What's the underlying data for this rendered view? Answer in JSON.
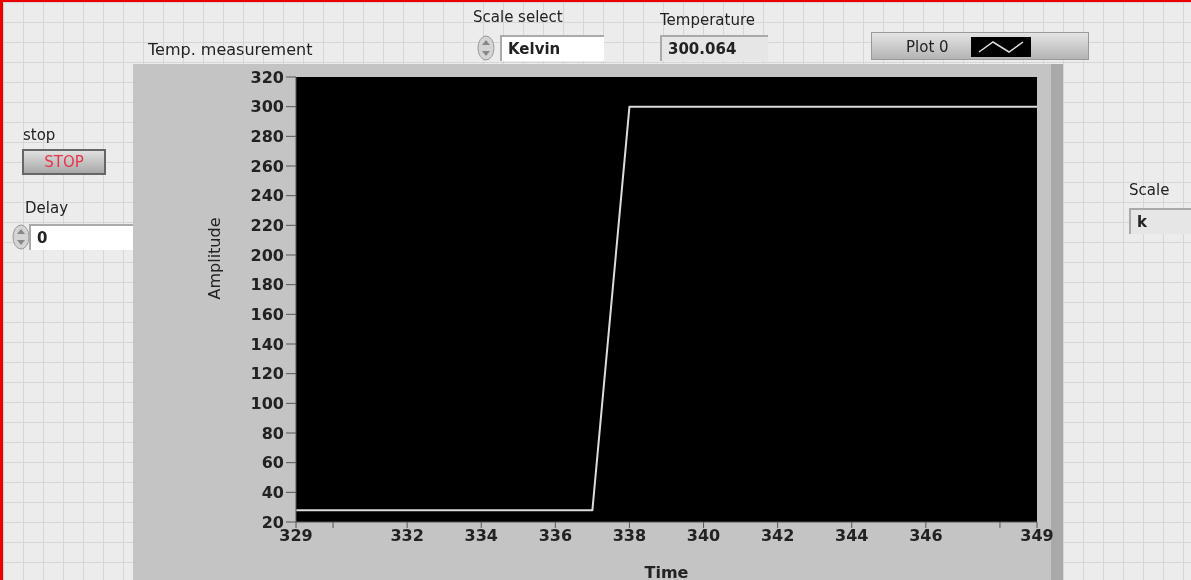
{
  "chart_data": {
    "type": "line",
    "title": "Temp. measurement",
    "xlabel": "Time",
    "ylabel": "Amplitude",
    "x": [
      329,
      337,
      338,
      349
    ],
    "series": [
      {
        "name": "Plot 0",
        "color": "#dcdcdc",
        "values": [
          28,
          28,
          300,
          300
        ]
      }
    ],
    "xlim": [
      329,
      349
    ],
    "xticks": [
      329,
      {
        "value": 330,
        "label": null
      },
      332,
      334,
      336,
      338,
      340,
      342,
      344,
      346,
      {
        "value": 348,
        "label": null
      },
      349
    ],
    "ylim": [
      20,
      320
    ],
    "yticks": [
      20,
      40,
      60,
      80,
      100,
      120,
      140,
      160,
      180,
      200,
      220,
      240,
      260,
      280,
      300,
      320
    ],
    "legend": "top right",
    "annotations": [
      "stop",
      "STOP",
      "Delay",
      "0",
      "Scale select",
      "Kelvin",
      "Temperature",
      "300.064",
      "Scale",
      "k"
    ]
  }
}
